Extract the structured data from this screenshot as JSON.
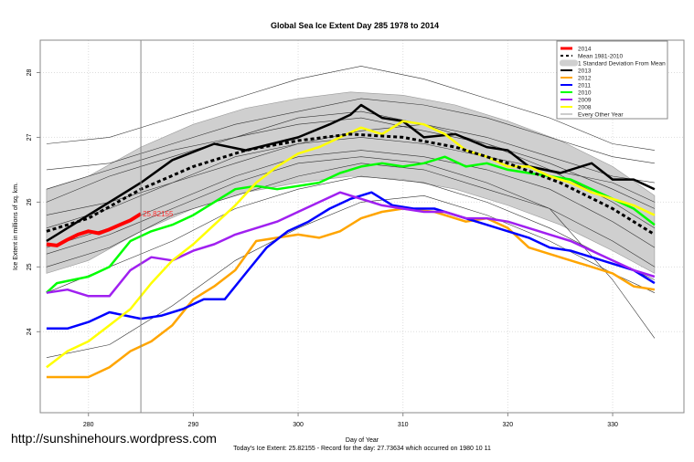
{
  "chart_data": {
    "type": "line",
    "title": "Global Sea Ice Extent Day 285 1978 to 2014",
    "xlabel": "Day of Year",
    "ylabel": "Ice Extent in millions of sq. km.",
    "xlim": [
      275.4,
      336.8
    ],
    "ylim": [
      22.75,
      28.5
    ],
    "xticks": [
      280,
      290,
      300,
      310,
      320,
      330
    ],
    "yticks": [
      24,
      25,
      26,
      27,
      28
    ],
    "grid": true,
    "legend_position": "top-right",
    "current_day": 285,
    "annotation": "25.82155",
    "footer": "Today's Ice Extent: 25.82155  - Record for the day: 27.73634 which occurred on 1980 10 11",
    "watermark": "http://sunshinehours.wordpress.com",
    "sd_band": {
      "name": "1 Standard Deviation From Mean",
      "x": [
        276,
        280,
        285,
        290,
        295,
        300,
        305,
        310,
        315,
        320,
        325,
        330,
        334
      ],
      "lower": [
        24.9,
        25.1,
        25.55,
        25.9,
        26.15,
        26.3,
        26.4,
        26.35,
        26.2,
        25.95,
        25.65,
        25.25,
        24.9
      ],
      "upper": [
        26.2,
        26.4,
        26.85,
        27.2,
        27.45,
        27.6,
        27.7,
        27.65,
        27.5,
        27.25,
        26.95,
        26.55,
        26.1
      ]
    },
    "mean": {
      "name": "Mean 1981-2010",
      "x": [
        276,
        280,
        285,
        290,
        295,
        300,
        305,
        310,
        315,
        320,
        325,
        330,
        334
      ],
      "y": [
        25.55,
        25.75,
        26.2,
        26.55,
        26.8,
        26.95,
        27.05,
        27.0,
        26.85,
        26.6,
        26.3,
        25.9,
        25.5
      ]
    },
    "other_years": {
      "name": "Every Other Year",
      "x": [
        276,
        282,
        288,
        294,
        300,
        306,
        312,
        318,
        324,
        330,
        334
      ],
      "series": [
        [
          26.9,
          27.0,
          27.3,
          27.6,
          27.9,
          28.1,
          27.9,
          27.6,
          27.3,
          26.9,
          26.8
        ],
        [
          26.5,
          26.6,
          26.9,
          27.2,
          27.4,
          27.6,
          27.5,
          27.3,
          27.0,
          26.7,
          26.6
        ],
        [
          26.0,
          26.4,
          26.7,
          27.0,
          27.2,
          27.3,
          27.1,
          26.9,
          26.6,
          26.2,
          25.9
        ],
        [
          25.8,
          26.0,
          26.3,
          26.7,
          26.9,
          27.1,
          27.2,
          26.9,
          26.5,
          26.0,
          25.6
        ],
        [
          25.3,
          25.6,
          26.0,
          26.4,
          26.7,
          26.8,
          26.7,
          26.5,
          26.2,
          25.7,
          25.3
        ],
        [
          25.0,
          25.3,
          25.8,
          26.1,
          26.4,
          26.6,
          26.5,
          26.2,
          25.9,
          25.4,
          25.0
        ],
        [
          24.6,
          25.0,
          25.4,
          25.9,
          26.2,
          26.4,
          26.3,
          26.0,
          25.6,
          25.1,
          24.8
        ],
        [
          23.6,
          23.8,
          24.4,
          25.1,
          25.6,
          26.0,
          26.1,
          25.8,
          25.4,
          24.9,
          24.6
        ],
        [
          25.6,
          25.9,
          26.3,
          26.6,
          26.9,
          27.0,
          26.9,
          26.7,
          26.5,
          26.3,
          26.0
        ],
        [
          26.2,
          26.5,
          26.8,
          27.0,
          27.3,
          27.4,
          27.2,
          27.0,
          26.7,
          26.4,
          26.3
        ],
        [
          25.2,
          25.5,
          25.9,
          26.3,
          26.6,
          26.7,
          26.6,
          26.3,
          25.9,
          24.8,
          23.9
        ]
      ]
    },
    "series": [
      {
        "name": "2013",
        "color": "#000000",
        "x": [
          276,
          280,
          285,
          288,
          292,
          295,
          300,
          303,
          305,
          306,
          308,
          310,
          312,
          315,
          318,
          320,
          322,
          325,
          328,
          330,
          332,
          334
        ],
        "y": [
          25.4,
          25.8,
          26.3,
          26.65,
          26.9,
          26.8,
          27.0,
          27.2,
          27.35,
          27.5,
          27.3,
          27.25,
          27.0,
          27.05,
          26.85,
          26.8,
          26.55,
          26.45,
          26.6,
          26.35,
          26.35,
          26.2
        ]
      },
      {
        "name": "2012",
        "color": "#FFA500",
        "x": [
          276,
          280,
          282,
          284,
          286,
          288,
          290,
          292,
          294,
          296,
          298,
          300,
          302,
          304,
          306,
          308,
          310,
          313,
          316,
          318,
          320,
          322,
          324,
          326,
          328,
          330,
          332,
          334
        ],
        "y": [
          23.3,
          23.3,
          23.45,
          23.7,
          23.85,
          24.1,
          24.5,
          24.7,
          24.95,
          25.4,
          25.45,
          25.5,
          25.45,
          25.55,
          25.75,
          25.85,
          25.9,
          25.85,
          25.7,
          25.75,
          25.6,
          25.3,
          25.2,
          25.1,
          25.0,
          24.9,
          24.7,
          24.65
        ]
      },
      {
        "name": "2011",
        "color": "#0000FF",
        "x": [
          276,
          278,
          280,
          282,
          285,
          287,
          289,
          291,
          293,
          295,
          297,
          299,
          301,
          303,
          305,
          307,
          309,
          311,
          313,
          315,
          318,
          320,
          322,
          324,
          326,
          328,
          330,
          332,
          334
        ],
        "y": [
          24.05,
          24.05,
          24.15,
          24.3,
          24.2,
          24.25,
          24.35,
          24.5,
          24.5,
          24.9,
          25.3,
          25.55,
          25.7,
          25.9,
          26.05,
          26.15,
          25.95,
          25.9,
          25.9,
          25.8,
          25.65,
          25.55,
          25.45,
          25.3,
          25.25,
          25.15,
          25.05,
          24.95,
          24.75
        ]
      },
      {
        "name": "2010",
        "color": "#00FF00",
        "x": [
          276,
          277,
          280,
          282,
          284,
          286,
          288,
          290,
          292,
          294,
          296,
          298,
          300,
          302,
          304,
          306,
          308,
          310,
          312,
          314,
          316,
          318,
          320,
          322,
          324,
          326,
          328,
          330,
          332,
          334
        ],
        "y": [
          24.6,
          24.75,
          24.85,
          25.0,
          25.4,
          25.55,
          25.65,
          25.8,
          26.0,
          26.2,
          26.25,
          26.2,
          26.25,
          26.3,
          26.45,
          26.55,
          26.6,
          26.55,
          26.6,
          26.7,
          26.55,
          26.6,
          26.5,
          26.45,
          26.4,
          26.35,
          26.2,
          26.05,
          25.9,
          25.65
        ]
      },
      {
        "name": "2009",
        "color": "#A020F0",
        "x": [
          276,
          278,
          280,
          282,
          284,
          286,
          288,
          290,
          292,
          294,
          296,
          298,
          300,
          302,
          304,
          306,
          308,
          310,
          312,
          314,
          316,
          318,
          320,
          322,
          324,
          326,
          328,
          330,
          332,
          334
        ],
        "y": [
          24.6,
          24.65,
          24.55,
          24.55,
          24.95,
          25.15,
          25.1,
          25.25,
          25.35,
          25.5,
          25.6,
          25.7,
          25.85,
          26.0,
          26.15,
          26.05,
          25.95,
          25.9,
          25.85,
          25.85,
          25.75,
          25.75,
          25.7,
          25.6,
          25.5,
          25.4,
          25.25,
          25.1,
          24.95,
          24.85
        ]
      },
      {
        "name": "2008",
        "color": "#FFFF00",
        "x": [
          276,
          278,
          280,
          282,
          284,
          286,
          288,
          290,
          292,
          294,
          296,
          298,
          300,
          302,
          304,
          306,
          308,
          310,
          312,
          314,
          316,
          318,
          320,
          322,
          324,
          326,
          328,
          330,
          332,
          334
        ],
        "y": [
          23.45,
          23.7,
          23.85,
          24.1,
          24.35,
          24.75,
          25.1,
          25.35,
          25.65,
          25.95,
          26.3,
          26.55,
          26.75,
          26.85,
          27.0,
          27.15,
          27.05,
          27.25,
          27.2,
          27.05,
          26.8,
          26.7,
          26.55,
          26.55,
          26.4,
          26.3,
          26.15,
          26.05,
          25.95,
          25.8
        ]
      },
      {
        "name": "2014",
        "color": "#FF0000",
        "x": [
          276,
          277,
          278,
          279,
          280,
          281,
          282,
          283,
          284,
          285
        ],
        "y": [
          25.35,
          25.33,
          25.42,
          25.5,
          25.55,
          25.52,
          25.58,
          25.65,
          25.72,
          25.82
        ]
      }
    ],
    "legend": [
      "2014",
      "Mean 1981-2010",
      "1 Standard Deviation From Mean",
      "2013",
      "2012",
      "2011",
      "2010",
      "2009",
      "2008",
      "Every Other Year"
    ]
  }
}
